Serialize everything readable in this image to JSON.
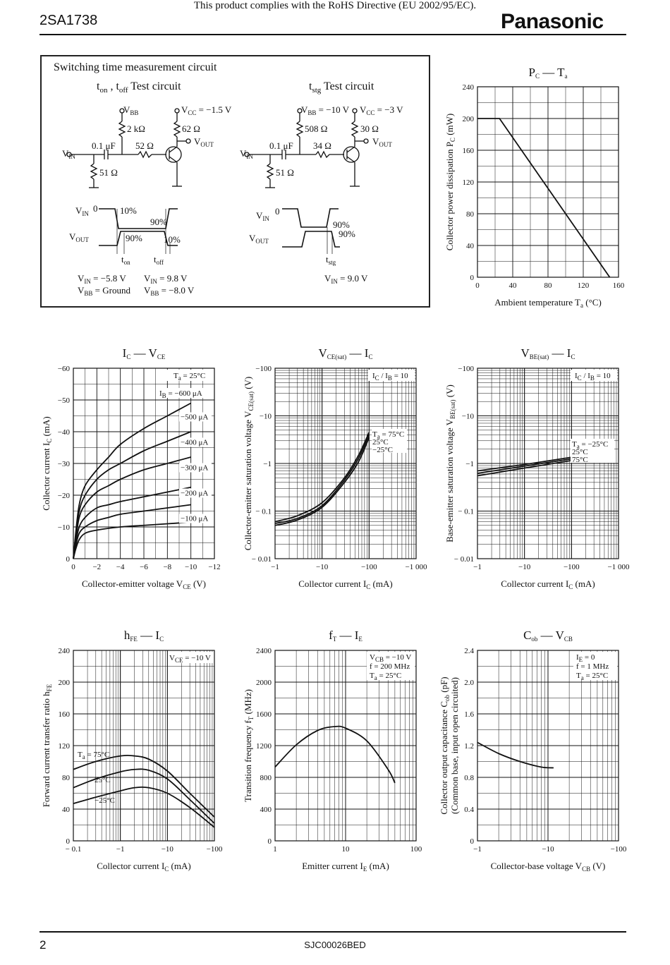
{
  "header": {
    "notice": "This product complies with the RoHS Directive (EU 2002/95/EC).",
    "part_number": "2SA1738",
    "brand": "Panasonic"
  },
  "footer": {
    "page_number": "2",
    "doc_code": "SJC00026BED"
  },
  "switching": {
    "title": "Switching time measurement circuit",
    "circuit1": {
      "title_t": "t",
      "title_on": "on",
      "title_sep": " , t",
      "title_off": "off",
      "title_rest": " Test circuit",
      "vbb": "V",
      "vbb_sub": "BB",
      "vcc": "V",
      "vcc_sub": "CC",
      "vcc_val": " = −1.5 V",
      "r_base": "2 kΩ",
      "r_load": "62 Ω",
      "vout": "V",
      "vout_sub": "OUT",
      "cap": "0.1 μF",
      "r_series": "52 Ω",
      "vin": "V",
      "vin_sub": "IN",
      "r_shunt": "51 Ω",
      "wave_vin": "V",
      "wave_vin_sub": "IN",
      "wave_zero": "0",
      "wave_vout": "V",
      "wave_vout_sub": "OUT",
      "p10a": "10%",
      "p90a": "90%",
      "p90b": "90%",
      "p10b": "10%",
      "ton": "t",
      "ton_sub": "on",
      "toff": "t",
      "toff_sub": "off",
      "c1a": "V",
      "c1a_sub": "IN",
      "c1a_val": " = −5.8 V",
      "c1b": "V",
      "c1b_sub": "BB",
      "c1b_val": " = Ground",
      "c2a": "V",
      "c2a_sub": "IN",
      "c2a_val": " = 9.8 V",
      "c2b": "V",
      "c2b_sub": "BB",
      "c2b_val": " = −8.0 V"
    },
    "circuit2": {
      "title_t": "t",
      "title_sub": "stg",
      "title_rest": " Test circuit",
      "vbb": "V",
      "vbb_sub": "BB",
      "vbb_val": " = −10 V",
      "vcc": "V",
      "vcc_sub": "CC",
      "vcc_val": " = −3 V",
      "r_base": "508 Ω",
      "r_load": "30 Ω",
      "vout": "V",
      "vout_sub": "OUT",
      "cap": "0.1 μF",
      "r_series": "34 Ω",
      "vin": "V",
      "vin_sub": "IN",
      "r_shunt": "51 Ω",
      "wave_vin": "V",
      "wave_vin_sub": "IN",
      "wave_zero": "0",
      "wave_vout": "V",
      "wave_vout_sub": "OUT",
      "p90a": "90%",
      "p90b": "90%",
      "tstg": "t",
      "tstg_sub": "stg",
      "c": "V",
      "c_sub": "IN",
      "c_val": " = 9.0 V"
    }
  },
  "charts": {
    "pc_ta": {
      "title_main": "P",
      "title_sub": "C",
      "title_dash": " — T",
      "title_sub2": "a",
      "xlabel": "Ambient temperature  T",
      "xlabel_sub": "a",
      "xlabel_unit": "  (°C)",
      "ylabel": "Collector power dissipation  P",
      "ylabel_sub": "C",
      "ylabel_unit": "  (mW)",
      "xticks": [
        "0",
        "40",
        "80",
        "120",
        "160"
      ],
      "yticks": [
        "0",
        "40",
        "80",
        "120",
        "160",
        "200",
        "240"
      ]
    },
    "ic_vce": {
      "title_main": "I",
      "title_sub": "C",
      "title_dash": " — V",
      "title_sub2": "CE",
      "xlabel": "Collector-emitter voltage  V",
      "xlabel_sub": "CE",
      "xlabel_unit": "  (V)",
      "ylabel": "Collector current  I",
      "ylabel_sub": "C",
      "ylabel_unit": "  (mA)",
      "xticks": [
        "0",
        "−2",
        "−4",
        "−6",
        "−8",
        "−10",
        "−12"
      ],
      "yticks": [
        "0",
        "−10",
        "−20",
        "−30",
        "−40",
        "−50",
        "−60"
      ],
      "cond": "T",
      "cond_sub": "a",
      "cond_val": " = 25°C",
      "ib_label": "I",
      "ib_sub": "B",
      "ib_val": " = −600 μA",
      "curve_labels": [
        "−500 μA",
        "−400 μA",
        "−300 μA",
        "−200 μA",
        "−100 μA"
      ]
    },
    "vcesat_ic": {
      "title_main": "V",
      "title_sub": "CE(sat)",
      "title_dash": " — I",
      "title_sub2": "C",
      "xlabel": "Collector current  I",
      "xlabel_sub": "C",
      "xlabel_unit": "  (mA)",
      "ylabel": "Collector-emitter saturation voltage  V",
      "ylabel_sub": "CE(sat)",
      "ylabel_unit": "  (V)",
      "xticks": [
        "−1",
        "−10",
        "−100",
        "−1 000"
      ],
      "yticks": [
        "− 0.01",
        "− 0.1",
        "−1",
        "−10",
        "−100"
      ],
      "cond": "I",
      "cond_sub": "C",
      "cond_mid": " / I",
      "cond_sub2": "B",
      "cond_val": " = 10",
      "t_label": "T",
      "t_sub": "a",
      "t_val": " = 75°C",
      "curve_labels": [
        "25°C",
        "−25°C"
      ]
    },
    "vbesat_ic": {
      "title_main": "V",
      "title_sub": "BE(sat)",
      "title_dash": " — I",
      "title_sub2": "C",
      "xlabel": "Collector current  I",
      "xlabel_sub": "C",
      "xlabel_unit": "  (mA)",
      "ylabel": "Base-emitter saturation voltage  V",
      "ylabel_sub": "BE(sat)",
      "ylabel_unit": "  (V)",
      "xticks": [
        "−1",
        "−10",
        "−100",
        "−1 000"
      ],
      "yticks": [
        "− 0.01",
        "− 0.1",
        "−1",
        "−10",
        "−100"
      ],
      "cond": "I",
      "cond_sub": "C",
      "cond_mid": " / I",
      "cond_sub2": "B",
      "cond_val": " = 10",
      "t_label": "T",
      "t_sub": "a",
      "t_val": " = −25°C",
      "curve_labels": [
        "25°C",
        "75°C"
      ]
    },
    "hfe_ic": {
      "title_main": "h",
      "title_sub": "FE",
      "title_dash": " — I",
      "title_sub2": "C",
      "xlabel": "Collector current  I",
      "xlabel_sub": "C",
      "xlabel_unit": "  (mA)",
      "ylabel": "Forward current transfer ratio  h",
      "ylabel_sub": "FE",
      "xticks": [
        "− 0.1",
        "−1",
        "−10",
        "−100"
      ],
      "yticks": [
        "0",
        "40",
        "80",
        "120",
        "160",
        "200",
        "240"
      ],
      "cond": "V",
      "cond_sub": "CE",
      "cond_val": " = −10 V",
      "t_label": "T",
      "t_sub": "a",
      "t_val": " = 75°C",
      "curve_labels": [
        "25°C",
        "−25°C"
      ]
    },
    "ft_ie": {
      "title_main": "f",
      "title_sub": "T",
      "title_dash": " — I",
      "title_sub2": "E",
      "xlabel": "Emitter current  I",
      "xlabel_sub": "E",
      "xlabel_unit": "  (mA)",
      "ylabel": "Transition frequency  f",
      "ylabel_sub": "T",
      "ylabel_unit": "  (MHz)",
      "xticks": [
        "1",
        "10",
        "100"
      ],
      "yticks": [
        "0",
        "400",
        "800",
        "1200",
        "1600",
        "2000",
        "2400"
      ],
      "cond1": "V",
      "cond1_sub": "CB",
      "cond1_val": " = −10 V",
      "cond2": "f = 200 MHz",
      "cond3": "T",
      "cond3_sub": "a",
      "cond3_val": " = 25°C"
    },
    "cob_vcb": {
      "title_main": "C",
      "title_sub": "ob",
      "title_dash": " — V",
      "title_sub2": "CB",
      "xlabel": "Collector-base voltage  V",
      "xlabel_sub": "CB",
      "xlabel_unit": "  (V)",
      "ylabel": "Collector output capacitance  C",
      "ylabel_sub": "ob",
      "ylabel_unit": "  (pF)",
      "ylabel2": "(Common base, input open circuited)",
      "xticks": [
        "−1",
        "−10",
        "−100"
      ],
      "yticks": [
        "0",
        "0.4",
        "0.8",
        "1.2",
        "1.6",
        "2.0",
        "2.4"
      ],
      "cond1": "I",
      "cond1_sub": "E",
      "cond1_val": " = 0",
      "cond2": "f = 1 MHz",
      "cond3": "T",
      "cond3_sub": "a",
      "cond3_val": " = 25°C"
    }
  },
  "chart_data": [
    {
      "type": "line",
      "id": "pc_ta",
      "x_scale": "linear",
      "y_scale": "linear",
      "xlim": [
        0,
        160
      ],
      "ylim": [
        0,
        240
      ],
      "grid": true,
      "series": [
        {
          "x": [
            0,
            25,
            150
          ],
          "y": [
            200,
            200,
            0
          ]
        }
      ]
    },
    {
      "type": "line",
      "id": "ic_vce",
      "x_scale": "linear",
      "y_scale": "linear",
      "xlim": [
        0,
        -12
      ],
      "ylim": [
        0,
        -60
      ],
      "grid": true,
      "series": [
        {
          "x": [
            0,
            -0.2,
            -0.5,
            -1,
            -2,
            -3,
            -4,
            -6,
            -8,
            -10
          ],
          "y": [
            0,
            -8,
            -17,
            -23,
            -28,
            -32,
            -36,
            -41,
            -45,
            -49
          ]
        },
        {
          "x": [
            0,
            -0.2,
            -0.5,
            -1,
            -2,
            -3,
            -4,
            -6,
            -8,
            -10
          ],
          "y": [
            0,
            -7,
            -15,
            -20,
            -25,
            -28,
            -30,
            -34,
            -37,
            -40
          ]
        },
        {
          "x": [
            0,
            -0.2,
            -0.5,
            -1,
            -2,
            -3,
            -4,
            -6,
            -8,
            -10
          ],
          "y": [
            0,
            -6,
            -13,
            -17,
            -21,
            -23,
            -25,
            -28,
            -30,
            -32
          ]
        },
        {
          "x": [
            0,
            -0.2,
            -0.5,
            -1,
            -2,
            -3,
            -4,
            -6,
            -8,
            -10
          ],
          "y": [
            0,
            -5,
            -10,
            -13,
            -16,
            -17,
            -18,
            -19.5,
            -21,
            -22.5
          ]
        },
        {
          "x": [
            0,
            -0.2,
            -0.5,
            -1,
            -2,
            -3,
            -4,
            -6,
            -8,
            -10
          ],
          "y": [
            0,
            -4,
            -8,
            -10,
            -12,
            -13,
            -14,
            -15,
            -16,
            -17
          ]
        },
        {
          "x": [
            0,
            -0.2,
            -0.5,
            -1,
            -2,
            -4,
            -6,
            -8,
            -10
          ],
          "y": [
            0,
            -3,
            -6,
            -8,
            -9,
            -10,
            -10.5,
            -11,
            -11.5
          ]
        }
      ]
    },
    {
      "type": "line",
      "id": "vcesat_ic",
      "x_scale": "log",
      "y_scale": "log",
      "xlim": [
        -1,
        -1000
      ],
      "ylim": [
        -0.01,
        -100
      ],
      "grid": true,
      "series": [
        {
          "x": [
            -1,
            -3,
            -10,
            -30,
            -60,
            -100
          ],
          "y": [
            -0.06,
            -0.08,
            -0.15,
            -0.5,
            -1.5,
            -4.5
          ]
        },
        {
          "x": [
            -1,
            -3,
            -10,
            -30,
            -60,
            -100
          ],
          "y": [
            -0.055,
            -0.07,
            -0.13,
            -0.45,
            -1.3,
            -4
          ]
        },
        {
          "x": [
            -1,
            -3,
            -10,
            -30,
            -60,
            -100
          ],
          "y": [
            -0.05,
            -0.065,
            -0.12,
            -0.4,
            -1.1,
            -3.5
          ]
        }
      ]
    },
    {
      "type": "line",
      "id": "vbesat_ic",
      "x_scale": "log",
      "y_scale": "log",
      "xlim": [
        -1,
        -1000
      ],
      "ylim": [
        -0.01,
        -100
      ],
      "grid": true,
      "series": [
        {
          "x": [
            -1,
            -10,
            -100
          ],
          "y": [
            -0.7,
            -0.95,
            -1.35
          ]
        },
        {
          "x": [
            -1,
            -10,
            -100
          ],
          "y": [
            -0.62,
            -0.88,
            -1.25
          ]
        },
        {
          "x": [
            -1,
            -10,
            -100
          ],
          "y": [
            -0.55,
            -0.8,
            -1.15
          ]
        }
      ]
    },
    {
      "type": "line",
      "id": "hfe_ic",
      "x_scale": "log",
      "y_scale": "linear",
      "xlim": [
        -0.1,
        -100
      ],
      "ylim": [
        0,
        240
      ],
      "grid": true,
      "series": [
        {
          "x": [
            -0.1,
            -0.3,
            -1,
            -2,
            -4,
            -10,
            -30,
            -100
          ],
          "y": [
            90,
            100,
            107,
            107,
            103,
            88,
            60,
            30
          ]
        },
        {
          "x": [
            -0.1,
            -0.3,
            -1,
            -2,
            -4,
            -10,
            -30,
            -100
          ],
          "y": [
            67,
            78,
            87,
            90,
            89,
            78,
            52,
            22
          ]
        },
        {
          "x": [
            -0.1,
            -0.3,
            -1,
            -2,
            -4,
            -10,
            -30,
            -100
          ],
          "y": [
            47,
            55,
            63,
            67,
            67,
            60,
            42,
            17
          ]
        }
      ]
    },
    {
      "type": "line",
      "id": "ft_ie",
      "x_scale": "log",
      "y_scale": "linear",
      "xlim": [
        1,
        100
      ],
      "ylim": [
        0,
        2400
      ],
      "grid": true,
      "series": [
        {
          "x": [
            1,
            2,
            4,
            7,
            10,
            20,
            40,
            50
          ],
          "y": [
            930,
            1210,
            1390,
            1440,
            1420,
            1260,
            900,
            730
          ]
        }
      ]
    },
    {
      "type": "line",
      "id": "cob_vcb",
      "x_scale": "log",
      "y_scale": "linear",
      "xlim": [
        -1,
        -100
      ],
      "ylim": [
        0,
        2.4
      ],
      "grid": true,
      "series": [
        {
          "x": [
            -1,
            -2,
            -4,
            -8,
            -12
          ],
          "y": [
            1.24,
            1.1,
            1.0,
            0.93,
            0.92
          ]
        }
      ]
    }
  ]
}
